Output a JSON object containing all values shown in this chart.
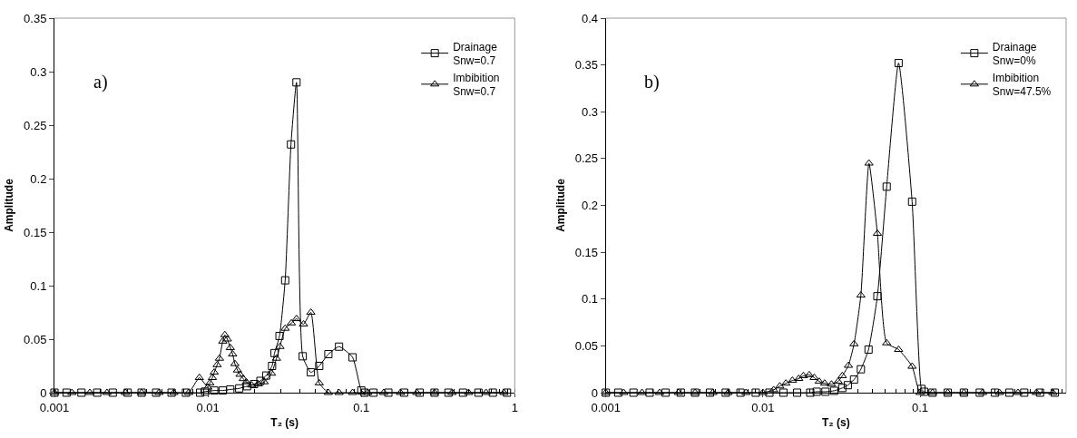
{
  "chart_data": [
    {
      "type": "line",
      "xlabel": "T₂ (s)",
      "ylabel": "Amplitude",
      "annotations": [
        "a)"
      ],
      "log": "x",
      "xlim": [
        0.001,
        1
      ],
      "xticks": [
        0.001,
        0.01,
        0.1,
        1
      ],
      "ylim": [
        0,
        0.35
      ],
      "yticks": [
        0,
        0.05,
        0.1,
        0.15,
        0.2,
        0.25,
        0.3,
        0.35
      ],
      "legend": "top right",
      "line_style": "solid",
      "series": [
        {
          "name": "Drainage\nSnw=0.7",
          "color": "#000000",
          "marker": "square",
          "x": [
            0.001,
            0.0012,
            0.0015,
            0.0019,
            0.0024,
            0.003,
            0.0037,
            0.0046,
            0.0058,
            0.0072,
            0.0089,
            0.0096,
            0.011,
            0.0125,
            0.014,
            0.016,
            0.018,
            0.02,
            0.022,
            0.024,
            0.0262,
            0.0272,
            0.0293,
            0.0319,
            0.0348,
            0.0378,
            0.0415,
            0.0469,
            0.0532,
            0.061,
            0.0716,
            0.0877,
            0.1,
            0.105,
            0.12,
            0.15,
            0.19,
            0.24,
            0.3,
            0.37,
            0.46,
            0.58,
            0.72,
            0.89
          ],
          "values": [
            0,
            0,
            0,
            0,
            0,
            0,
            0,
            0,
            0,
            0,
            0,
            0.001,
            0.002,
            0.002,
            0.003,
            0.004,
            0.006,
            0.008,
            0.011,
            0.016,
            0.025,
            0.037,
            0.053,
            0.105,
            0.232,
            0.29,
            0.034,
            0.019,
            0.025,
            0.036,
            0.043,
            0.033,
            0.002,
            0,
            0,
            0,
            0,
            0,
            0,
            0,
            0,
            0,
            0,
            0
          ]
        },
        {
          "name": "Imbibition\nSnw=0.7",
          "color": "#000000",
          "marker": "triangle",
          "x": [
            0.001,
            0.0013,
            0.0017,
            0.0022,
            0.0029,
            0.0037,
            0.0048,
            0.006,
            0.0075,
            0.0088,
            0.01,
            0.0103,
            0.0107,
            0.011,
            0.0115,
            0.0119,
            0.0125,
            0.0129,
            0.0134,
            0.014,
            0.0145,
            0.015,
            0.0156,
            0.0162,
            0.017,
            0.0178,
            0.0193,
            0.0213,
            0.0233,
            0.026,
            0.028,
            0.0295,
            0.0319,
            0.035,
            0.0378,
            0.042,
            0.0469,
            0.0532,
            0.061,
            0.0716,
            0.0877,
            0.11,
            0.14,
            0.18,
            0.23,
            0.3,
            0.39,
            0.5,
            0.65,
            0.85
          ],
          "values": [
            0,
            0,
            0,
            0,
            0,
            0,
            0,
            0,
            0,
            0.014,
            0.005,
            0.009,
            0.014,
            0.019,
            0.026,
            0.032,
            0.048,
            0.054,
            0.05,
            0.042,
            0.036,
            0.027,
            0.021,
            0.017,
            0.013,
            0.01,
            0.007,
            0.008,
            0.01,
            0.018,
            0.032,
            0.043,
            0.06,
            0.065,
            0.069,
            0.064,
            0.075,
            0.009,
            0,
            0,
            0,
            0,
            0,
            0,
            0,
            0,
            0,
            0,
            0,
            0
          ]
        }
      ]
    },
    {
      "type": "line",
      "xlabel": "T₂ (s)",
      "ylabel": "Amplitude",
      "annotations": [
        "b)"
      ],
      "log": "x",
      "xlim": [
        0.001,
        0.85
      ],
      "xticks": [
        0.001,
        0.01,
        0.1
      ],
      "ylim": [
        0,
        0.4
      ],
      "yticks": [
        0,
        0.05,
        0.1,
        0.15,
        0.2,
        0.25,
        0.3,
        0.35,
        0.4
      ],
      "legend": "top right",
      "line_style": "solid",
      "series": [
        {
          "name": "Drainage\nSnw=0%",
          "color": "#000000",
          "marker": "square",
          "x": [
            0.001,
            0.0012,
            0.0015,
            0.0019,
            0.0024,
            0.003,
            0.0037,
            0.0046,
            0.0058,
            0.0072,
            0.009,
            0.011,
            0.0135,
            0.0165,
            0.02,
            0.022,
            0.025,
            0.0284,
            0.032,
            0.0347,
            0.038,
            0.042,
            0.047,
            0.0535,
            0.0613,
            0.073,
            0.089,
            0.102,
            0.106,
            0.12,
            0.15,
            0.19,
            0.24,
            0.3,
            0.37,
            0.46,
            0.58,
            0.72
          ],
          "values": [
            0,
            0,
            0,
            0,
            0,
            0,
            0,
            0,
            0,
            0,
            0,
            0,
            0,
            0,
            0,
            0.001,
            0.001,
            0.002,
            0.005,
            0.008,
            0.014,
            0.025,
            0.046,
            0.103,
            0.22,
            0.352,
            0.204,
            0.004,
            0.001,
            0,
            0,
            0,
            0,
            0,
            0,
            0,
            0,
            0
          ]
        },
        {
          "name": "Imbibition\nSnw=47.5%",
          "color": "#000000",
          "marker": "triangle",
          "x": [
            0.001,
            0.0013,
            0.0017,
            0.0022,
            0.0029,
            0.0037,
            0.0048,
            0.006,
            0.0078,
            0.01,
            0.0117,
            0.0128,
            0.014,
            0.0154,
            0.0169,
            0.0181,
            0.0197,
            0.0212,
            0.0228,
            0.0247,
            0.0273,
            0.0301,
            0.032,
            0.035,
            0.038,
            0.042,
            0.0473,
            0.0535,
            0.0613,
            0.073,
            0.089,
            0.1,
            0.12,
            0.15,
            0.19,
            0.25,
            0.32,
            0.42,
            0.55,
            0.7
          ],
          "values": [
            0,
            0,
            0,
            0,
            0,
            0,
            0,
            0,
            0,
            0,
            0.003,
            0.007,
            0.01,
            0.013,
            0.015,
            0.018,
            0.019,
            0.016,
            0.012,
            0.01,
            0.009,
            0.012,
            0.018,
            0.029,
            0.052,
            0.104,
            0.245,
            0.17,
            0.053,
            0.046,
            0.028,
            0,
            0,
            0,
            0,
            0,
            0,
            0,
            0,
            0
          ]
        }
      ]
    }
  ]
}
